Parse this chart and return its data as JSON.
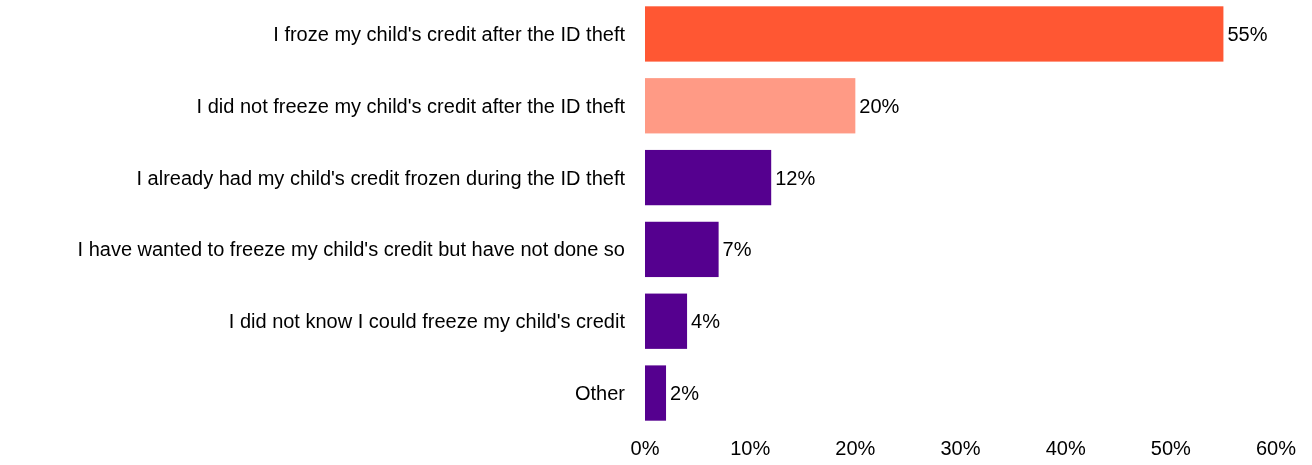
{
  "chart_data": {
    "type": "bar",
    "orientation": "horizontal",
    "categories": [
      "I froze my child's credit after the ID theft",
      "I did not freeze my child's credit after the ID theft",
      "I already had my child's credit frozen during the ID theft",
      "I have wanted to freeze my child's credit but have not done so",
      "I did not know I could freeze my child's credit",
      "Other"
    ],
    "values": [
      55,
      20,
      12,
      7,
      4,
      2
    ],
    "colors": [
      "#ff5733",
      "#ff9a85",
      "#55008f",
      "#55008f",
      "#55008f",
      "#55008f"
    ],
    "value_labels": [
      "55%",
      "20%",
      "12%",
      "7%",
      "4%",
      "2%"
    ],
    "xlim": [
      0,
      60
    ],
    "xticks": [
      {
        "value": 0,
        "label": "0%"
      },
      {
        "value": 10,
        "label": "10%"
      },
      {
        "value": 20,
        "label": "20%"
      },
      {
        "value": 30,
        "label": "30%"
      },
      {
        "value": 40,
        "label": "40%"
      },
      {
        "value": 50,
        "label": "50%"
      },
      {
        "value": 60,
        "label": "60%"
      }
    ],
    "grid": false
  }
}
